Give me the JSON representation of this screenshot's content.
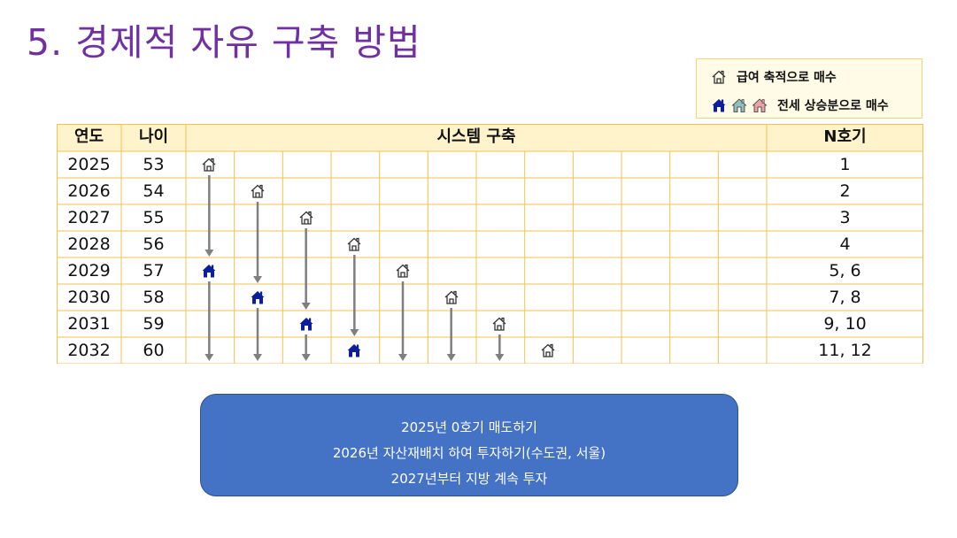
{
  "title": "5. 경제적 자유 구축 방법",
  "legend": {
    "salary_label": "급여 축적으로 매수",
    "jeonse_label": "전세 상승분으로 매수",
    "salary_icon": "house-outline-icon",
    "jeonse_icons": [
      "house-blue-icon",
      "house-teal-icon",
      "house-pink-icon"
    ],
    "colors": {
      "blue": "#0b1f9c",
      "teal": "#8fbfbe",
      "pink": "#e7a3a5"
    }
  },
  "table": {
    "headers": {
      "year": "연도",
      "age": "나이",
      "system": "시스템 구축",
      "nho": "N호기"
    },
    "rows": [
      {
        "year": "2025",
        "age": "53",
        "nho": "1"
      },
      {
        "year": "2026",
        "age": "54",
        "nho": "2"
      },
      {
        "year": "2027",
        "age": "55",
        "nho": "3"
      },
      {
        "year": "2028",
        "age": "56",
        "nho": "4"
      },
      {
        "year": "2029",
        "age": "57",
        "nho": "5, 6"
      },
      {
        "year": "2030",
        "age": "58",
        "nho": "7, 8"
      },
      {
        "year": "2031",
        "age": "59",
        "nho": "9, 10"
      },
      {
        "year": "2032",
        "age": "60",
        "nho": "11, 12"
      }
    ],
    "salary_purchases": [
      {
        "row": 0,
        "col": 0
      },
      {
        "row": 1,
        "col": 1
      },
      {
        "row": 2,
        "col": 2
      },
      {
        "row": 3,
        "col": 3
      },
      {
        "row": 4,
        "col": 4
      },
      {
        "row": 5,
        "col": 5
      },
      {
        "row": 6,
        "col": 6
      },
      {
        "row": 7,
        "col": 7
      }
    ],
    "jeonse_purchases": [
      {
        "row": 4,
        "col": 0
      },
      {
        "row": 5,
        "col": 1
      },
      {
        "row": 6,
        "col": 2
      },
      {
        "row": 7,
        "col": 3
      }
    ]
  },
  "infobox": {
    "line1": "2025년 0호기 매도하기",
    "line2": "2026년 자산재배치 하여 투자하기(수도권, 서울)",
    "line3": "2027년부터 지방 계속 투자"
  }
}
